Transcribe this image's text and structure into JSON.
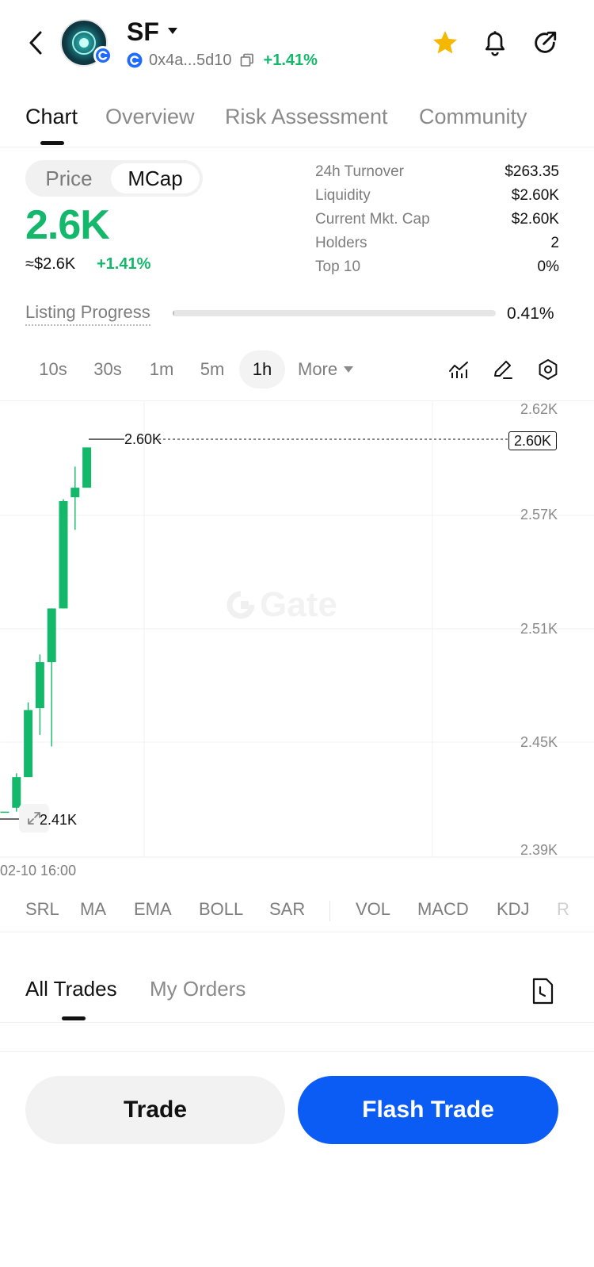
{
  "header": {
    "token_name": "SF",
    "address": "0x4a...5d10",
    "change": "+1.41%",
    "colors": {
      "star": "#f5b800",
      "positive": "#14b86b"
    }
  },
  "tabs": [
    {
      "label": "Chart"
    },
    {
      "label": "Overview"
    },
    {
      "label": "Risk Assessment"
    },
    {
      "label": "Community"
    }
  ],
  "toggle": {
    "price_label": "Price",
    "mcap_label": "MCap"
  },
  "summary": {
    "big_value": "2.6K",
    "approx_usd": "≈$2.6K",
    "change": "+1.41%"
  },
  "stats": [
    {
      "label": "24h  Turnover",
      "value": "$263.35"
    },
    {
      "label": "Liquidity",
      "value": "$2.60K"
    },
    {
      "label": "Current Mkt. Cap",
      "value": "$2.60K"
    },
    {
      "label": "Holders",
      "value": "2"
    },
    {
      "label": "Top 10",
      "value": "0%"
    }
  ],
  "listing": {
    "label": "Listing Progress",
    "value": "0.41%",
    "fraction": 0.0041
  },
  "intervals": [
    {
      "label": "10s"
    },
    {
      "label": "30s"
    },
    {
      "label": "1m"
    },
    {
      "label": "5m"
    },
    {
      "label": "1h"
    },
    {
      "label": "More"
    }
  ],
  "active_interval": "1h",
  "chart": {
    "y_ticks": [
      "2.62K",
      "2.57K",
      "2.51K",
      "2.45K",
      "2.39K"
    ],
    "current_price_label": "2.60K",
    "high_label": "2.60K",
    "low_label": "2.41K",
    "x_label": "02-10 16:00",
    "watermark": "Gate",
    "up_color": "#14b86b",
    "candles": [
      {
        "o": 2.41,
        "c": 2.41,
        "h": 2.41,
        "l": 2.41
      },
      {
        "o": 2.412,
        "c": 2.428,
        "h": 2.43,
        "l": 2.41
      },
      {
        "o": 2.428,
        "c": 2.463,
        "h": 2.467,
        "l": 2.428
      },
      {
        "o": 2.464,
        "c": 2.488,
        "h": 2.492,
        "l": 2.45
      },
      {
        "o": 2.488,
        "c": 2.516,
        "h": 2.516,
        "l": 2.444
      },
      {
        "o": 2.516,
        "c": 2.572,
        "h": 2.573,
        "l": 2.516
      },
      {
        "o": 2.574,
        "c": 2.579,
        "h": 2.59,
        "l": 2.557
      },
      {
        "o": 2.579,
        "c": 2.6,
        "h": 2.6,
        "l": 2.579
      }
    ]
  },
  "indicators": [
    "SRL",
    "MA",
    "EMA",
    "BOLL",
    "SAR",
    "VOL",
    "MACD",
    "KDJ",
    "R"
  ],
  "trades_tabs": [
    {
      "label": "All Trades"
    },
    {
      "label": "My Orders"
    }
  ],
  "buttons": {
    "trade": "Trade",
    "flash_trade": "Flash Trade"
  }
}
